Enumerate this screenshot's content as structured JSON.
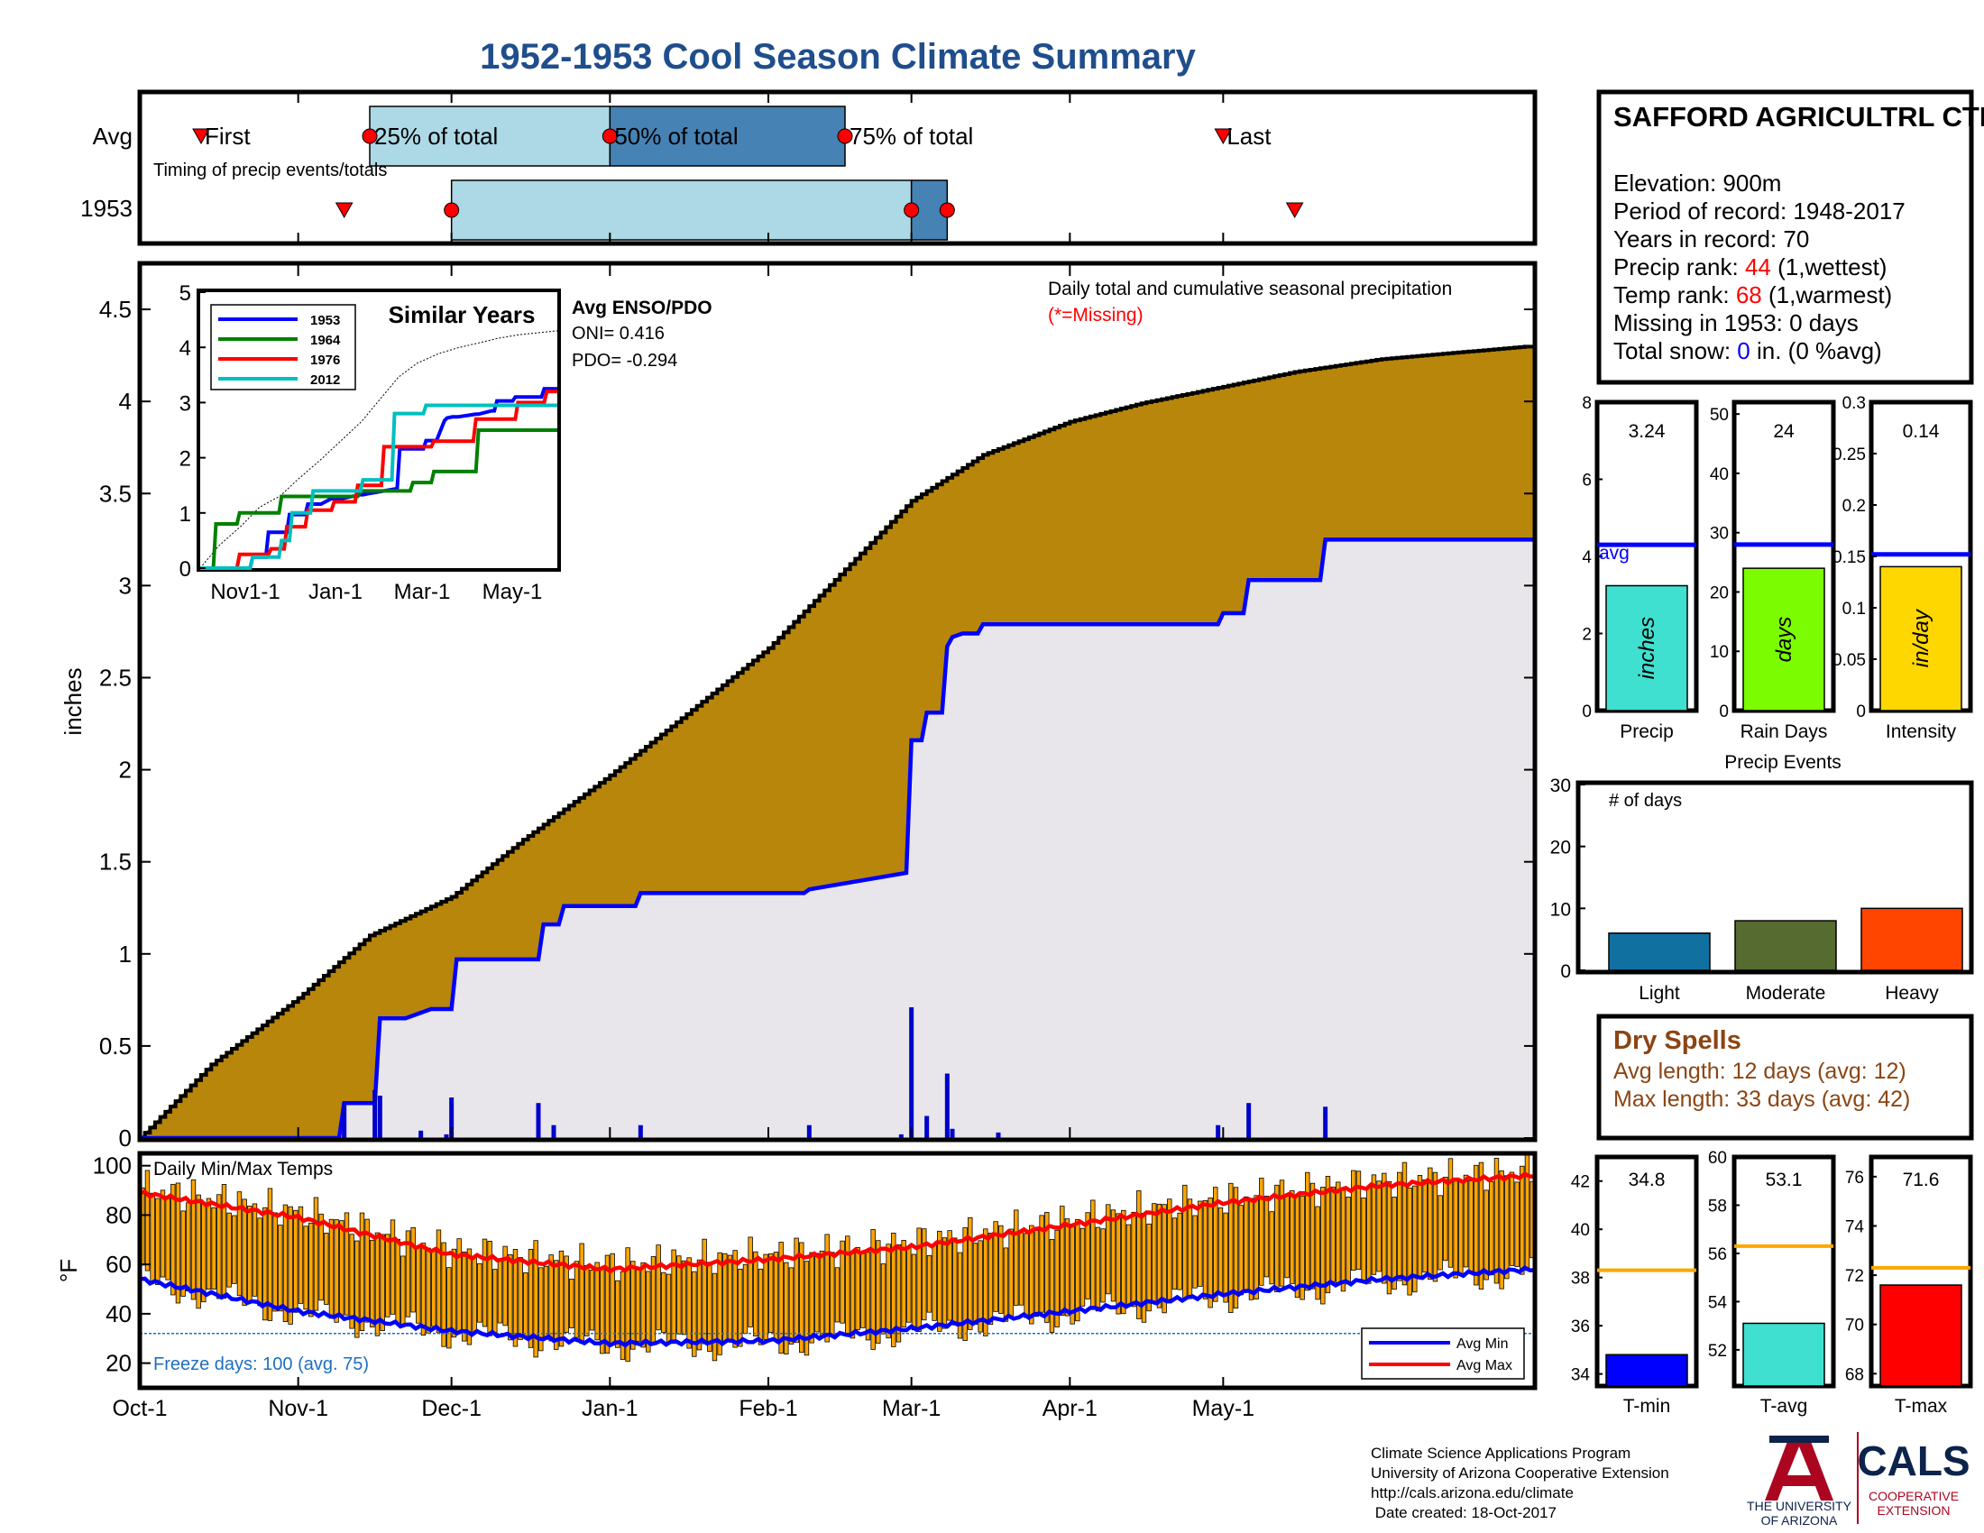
{
  "title": "1952-1953 Cool Season Climate Summary",
  "colors": {
    "title": "#1f4e8c",
    "cumulative_fill": "#b8860b",
    "season_fill": "#e8e6ea",
    "season_line": "#0000ff",
    "daily_bar": "#0000cc",
    "timing_light": "#add8e6",
    "timing_dark": "#4682b4",
    "temp_bar": "#ffa500",
    "avg_max": "#ff0000",
    "avg_min": "#0000ff",
    "freeze_line": "#1f6fbf",
    "missing": "#ff0000"
  },
  "timing": {
    "avg_label": "Avg",
    "year_label": "1953",
    "first_label": "First",
    "last_label": "Last",
    "p25_label": "25% of total",
    "p50_label": "50% of total",
    "p75_label": "75% of total",
    "caption": "Timing of precip events/totals",
    "avg": {
      "first": "Oct-13",
      "p25": "Nov-15",
      "p50": "Jan-1",
      "p75": "Feb-16",
      "last": "May-1"
    },
    "year": {
      "first": "Nov-10",
      "p25": "Dec-1",
      "p50": "Mar-1",
      "p75": "Mar-8",
      "last": "May-15"
    }
  },
  "precip_chart": {
    "ylabel": "inches",
    "annotation": "Daily total and cumulative seasonal precipitation",
    "missing_note": "(*=Missing)"
  },
  "similar_years": {
    "title": "Similar Years",
    "enso_title": "Avg ENSO/PDO",
    "oni": "ONI= 0.416",
    "pdo": "PDO= -0.294",
    "legend": [
      "1953",
      "1964",
      "1976",
      "2012"
    ],
    "x_ticks": [
      "Nov1-1",
      "Jan-1",
      "Mar-1",
      "May-1"
    ],
    "y_ticks": [
      "0",
      "1",
      "2",
      "3",
      "4",
      "5"
    ]
  },
  "temp_chart": {
    "title": "Daily Min/Max Temps",
    "ylabel": "°F",
    "freeze": "Freeze days: 100 (avg. 75)",
    "legend_min": "Avg Min",
    "legend_max": "Avg Max"
  },
  "x_axis": [
    "Oct-1",
    "Nov-1",
    "Dec-1",
    "Jan-1",
    "Feb-1",
    "Mar-1",
    "Apr-1",
    "May-1"
  ],
  "station": {
    "name": "SAFFORD AGRICULTRL CTR",
    "elevation": "Elevation: 900m",
    "period": "Period of record: 1948-2017",
    "years": "Years in record: 70",
    "precip_rank_label": "Precip rank: ",
    "precip_rank_value": "44",
    "precip_rank_suffix": " (1,wettest)",
    "temp_rank_label": "Temp rank: ",
    "temp_rank_value": "68",
    "temp_rank_suffix": " (1,warmest)",
    "missing": "Missing in 1953: 0 days",
    "snow_label": "Total snow: ",
    "snow_value": "0",
    "snow_suffix": " in. (0 %avg)"
  },
  "mini_bars": [
    {
      "label": "Precip",
      "unit": "inches",
      "value_text": "3.24",
      "value": 3.24,
      "avg": 4.3,
      "ymax": 8,
      "ticks": [
        "0",
        "2",
        "4",
        "6",
        "8"
      ],
      "color": "#40e0d0",
      "avg_label": "avg"
    },
    {
      "label": "Rain Days",
      "unit": "days",
      "value_text": "24",
      "value": 24,
      "avg": 28,
      "ymax": 52,
      "ticks": [
        "0",
        "10",
        "20",
        "30",
        "40",
        "50"
      ],
      "color": "#7cfc00"
    },
    {
      "label": "Intensity",
      "unit": "in/day",
      "value_text": "0.14",
      "value": 0.14,
      "avg": 0.152,
      "ymax": 0.3,
      "ticks": [
        "0",
        "0.05",
        "0.1",
        "0.15",
        "0.2",
        "0.25",
        "0.3"
      ],
      "color": "#ffd700"
    }
  ],
  "precip_events": {
    "title": "Precip Events",
    "ylabel": "# of days",
    "ticks": [
      "0",
      "10",
      "20",
      "30"
    ],
    "categories": [
      "Light",
      "Moderate",
      "Heavy"
    ],
    "values": [
      6,
      8,
      10
    ],
    "colors": [
      "#1070a0",
      "#556b2f",
      "#ff4500"
    ]
  },
  "dry_spells": {
    "title": "Dry Spells",
    "avg": "Avg length: 12 days (avg: 12)",
    "max": "Max length: 33 days (avg: 42)"
  },
  "temp_bars": [
    {
      "label": "T-min",
      "value_text": "34.8",
      "value": 34.8,
      "avg": 38.3,
      "ymin": 33.5,
      "ymax": 43,
      "ticks": [
        "34",
        "36",
        "38",
        "40",
        "42"
      ],
      "color": "#0000ff"
    },
    {
      "label": "T-avg",
      "value_text": "53.1",
      "value": 53.1,
      "avg": 56.3,
      "ymin": 50.5,
      "ymax": 60,
      "ticks": [
        "52",
        "54",
        "56",
        "58",
        "60"
      ],
      "color": "#40e0d0"
    },
    {
      "label": "T-max",
      "value_text": "71.6",
      "value": 71.6,
      "avg": 72.3,
      "ymin": 67.5,
      "ymax": 76.8,
      "ticks": [
        "68",
        "70",
        "72",
        "74",
        "76"
      ],
      "color": "#ff0000"
    }
  ],
  "footer": {
    "line1": "Climate Science Applications Program",
    "line2": "University of Arizona Cooperative Extension",
    "line3": "http://cals.arizona.edu/climate",
    "line4": " Date created: 18-Oct-2017",
    "ua_line1": "THE UNIVERSITY",
    "ua_line2": "OF ARIZONA",
    "cals": "CALS",
    "coop1": "COOPERATIVE",
    "coop2": "EXTENSION"
  },
  "chart_data": [
    {
      "type": "area",
      "title": "Daily total and cumulative seasonal precipitation",
      "ylabel": "inches",
      "ylim": [
        0,
        4.75
      ],
      "x_ticks": [
        "Oct-1",
        "Nov-1",
        "Dec-1",
        "Jan-1",
        "Feb-1",
        "Mar-1",
        "Apr-1",
        "May-1"
      ],
      "y_ticks": [
        0,
        0.5,
        1,
        1.5,
        2,
        2.5,
        3,
        3.5,
        4,
        4.5
      ],
      "series": [
        {
          "name": "avg cumulative",
          "x": [
            "Oct-1",
            "Oct-15",
            "Nov-1",
            "Nov-15",
            "Dec-1",
            "Dec-15",
            "Jan-1",
            "Jan-15",
            "Feb-1",
            "Feb-15",
            "Mar-1",
            "Mar-15",
            "Apr-1",
            "Apr-15",
            "May-1",
            "May-15",
            "Jun-1",
            "Jun-30"
          ],
          "values": [
            0,
            0.4,
            0.76,
            1.1,
            1.31,
            1.62,
            1.97,
            2.28,
            2.66,
            3.06,
            3.46,
            3.71,
            3.89,
            3.99,
            4.08,
            4.16,
            4.23,
            4.3
          ]
        },
        {
          "name": "1953 cumulative",
          "x": [
            "Oct-1",
            "Nov-9",
            "Nov-10",
            "Nov-16",
            "Nov-17",
            "Nov-22",
            "Nov-27",
            "Dec-1",
            "Dec-2",
            "Dec-18",
            "Dec-19",
            "Dec-22",
            "Dec-23",
            "Jan-6",
            "Jan-7",
            "Feb-8",
            "Feb-9",
            "Feb-28",
            "Mar-1",
            "Mar-3",
            "Mar-4",
            "Mar-7",
            "Mar-8",
            "Mar-9",
            "Mar-11",
            "Mar-14",
            "Mar-15",
            "Apr-30",
            "May-1",
            "May-5",
            "May-6",
            "May-20",
            "May-21",
            "Jun-30"
          ],
          "values": [
            0,
            0,
            0.19,
            0.19,
            0.65,
            0.65,
            0.7,
            0.7,
            0.97,
            0.97,
            1.16,
            1.16,
            1.26,
            1.26,
            1.33,
            1.33,
            1.35,
            1.44,
            2.16,
            2.16,
            2.31,
            2.31,
            2.67,
            2.72,
            2.74,
            2.74,
            2.79,
            2.79,
            2.85,
            2.85,
            3.03,
            3.03,
            3.25,
            3.25
          ]
        },
        {
          "name": "1953 daily",
          "x": [
            "Nov-10",
            "Nov-16",
            "Nov-17",
            "Nov-25",
            "Nov-30",
            "Dec-1",
            "Dec-18",
            "Dec-21",
            "Jan-7",
            "Feb-9",
            "Feb-27",
            "Mar-1",
            "Mar-4",
            "Mar-8",
            "Mar-9",
            "Mar-18",
            "Apr-30",
            "May-6",
            "May-21"
          ],
          "values": [
            0.19,
            0.26,
            0.23,
            0.04,
            0.02,
            0.22,
            0.19,
            0.07,
            0.07,
            0.07,
            0.02,
            0.71,
            0.12,
            0.35,
            0.05,
            0.03,
            0.07,
            0.19,
            0.17
          ]
        }
      ]
    },
    {
      "type": "line",
      "title": "Similar Years",
      "x_ticks": [
        "Nov1-1",
        "Jan-1",
        "Mar-1",
        "May-1"
      ],
      "ylim": [
        0,
        5
      ],
      "series": [
        {
          "name": "1953",
          "x": [
            0,
            38,
            40,
            50,
            52,
            66,
            68,
            80,
            82,
            92,
            100,
            108,
            122,
            124,
            128,
            150,
            152,
            170,
            172,
            180,
            186,
            188,
            192,
            196,
            210,
            212,
            222,
            224,
            226,
            238,
            240,
            260,
            262,
            272
          ],
          "values": [
            0,
            0,
            0.2,
            0.2,
            0.65,
            0.65,
            0.97,
            0.97,
            1.16,
            1.16,
            1.26,
            1.26,
            1.33,
            1.33,
            1.35,
            1.44,
            2.16,
            2.16,
            2.31,
            2.31,
            2.67,
            2.72,
            2.74,
            2.74,
            2.79,
            2.79,
            2.85,
            2.85,
            3.03,
            3.03,
            3.1,
            3.1,
            3.25,
            3.25
          ]
        },
        {
          "name": "1964",
          "x": [
            0,
            10,
            12,
            28,
            30,
            60,
            62,
            120,
            122,
            160,
            162,
            176,
            178,
            210,
            212,
            272
          ],
          "values": [
            0,
            0,
            0.8,
            0.8,
            1.0,
            1.0,
            1.3,
            1.3,
            1.4,
            1.4,
            1.55,
            1.55,
            1.75,
            1.75,
            2.5,
            2.5
          ]
        },
        {
          "name": "1976",
          "x": [
            0,
            28,
            30,
            52,
            54,
            64,
            66,
            80,
            82,
            100,
            102,
            118,
            120,
            138,
            140,
            176,
            178,
            208,
            210,
            240,
            242,
            262,
            264,
            272
          ],
          "values": [
            0,
            0,
            0.25,
            0.25,
            0.35,
            0.35,
            0.75,
            0.75,
            1.05,
            1.05,
            1.2,
            1.2,
            1.5,
            1.5,
            2.2,
            2.2,
            2.3,
            2.3,
            2.7,
            2.7,
            3.0,
            3.0,
            3.2,
            3.2
          ]
        },
        {
          "name": "2012",
          "x": [
            0,
            38,
            40,
            60,
            62,
            68,
            70,
            84,
            86,
            122,
            124,
            146,
            148,
            170,
            172,
            272
          ],
          "values": [
            0,
            0,
            0.2,
            0.2,
            0.5,
            0.5,
            1.0,
            1.0,
            1.4,
            1.4,
            1.6,
            1.6,
            2.8,
            2.8,
            2.95,
            2.95
          ]
        }
      ]
    },
    {
      "type": "bar",
      "title": "Daily Min/Max Temps",
      "ylabel": "°F",
      "ylim": [
        10,
        105
      ],
      "y_ticks": [
        20,
        40,
        60,
        80,
        100
      ],
      "x_ticks": [
        "Oct-1",
        "Nov-1",
        "Dec-1",
        "Jan-1",
        "Feb-1",
        "Mar-1",
        "Apr-1",
        "May-1"
      ],
      "series": [
        {
          "name": "Avg Max",
          "x": [
            "Oct-1",
            "Nov-1",
            "Dec-1",
            "Jan-1",
            "Feb-1",
            "Mar-1",
            "Apr-1",
            "May-1",
            "Jun-1",
            "Jun-30"
          ],
          "values": [
            89,
            79,
            64,
            58,
            62,
            67,
            76,
            85,
            92,
            96
          ]
        },
        {
          "name": "Avg Min",
          "x": [
            "Oct-1",
            "Nov-1",
            "Dec-1",
            "Jan-1",
            "Feb-1",
            "Mar-1",
            "Apr-1",
            "May-1",
            "Jun-1",
            "Jun-30"
          ],
          "values": [
            54,
            41,
            33,
            28,
            29,
            34,
            41,
            48,
            54,
            58
          ]
        },
        {
          "name": "Freeze",
          "x": [
            "Oct-1",
            "Jun-30"
          ],
          "values": [
            32,
            32
          ]
        }
      ]
    },
    {
      "type": "bar",
      "title": "Precip Events",
      "categories": [
        "Light",
        "Moderate",
        "Heavy"
      ],
      "values": [
        6,
        8,
        10
      ],
      "ylim": [
        0,
        30
      ]
    }
  ]
}
